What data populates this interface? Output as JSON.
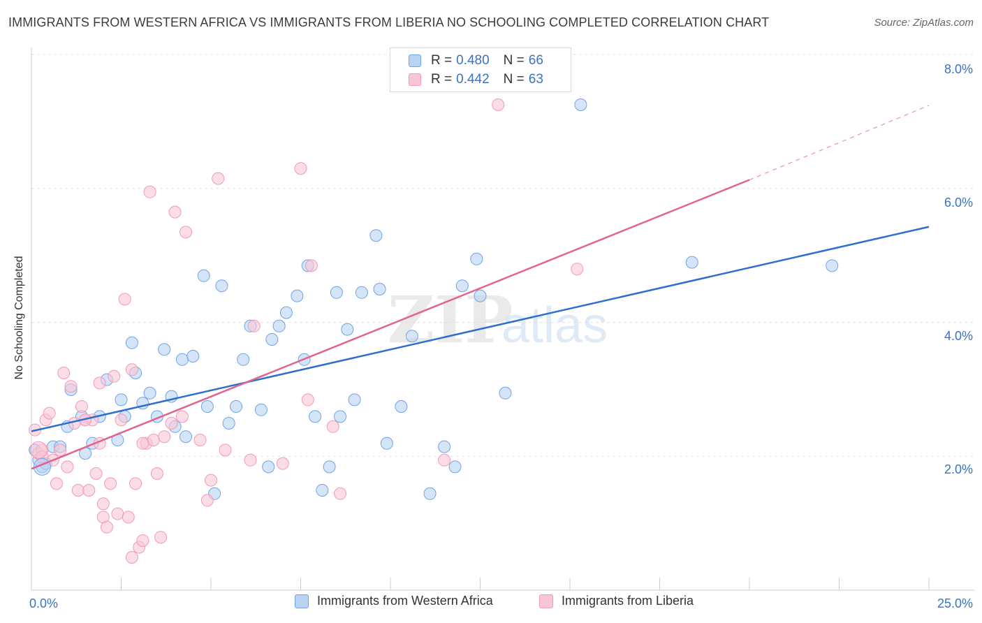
{
  "header": {
    "title": "IMMIGRANTS FROM WESTERN AFRICA VS IMMIGRANTS FROM LIBERIA NO SCHOOLING COMPLETED CORRELATION CHART",
    "source": "Source: ZipAtlas.com"
  },
  "watermark": {
    "zip": "ZIP",
    "atlas": "atlas"
  },
  "legend_top": {
    "rows": [
      {
        "r_label": "R = ",
        "r_value": "0.480",
        "n_label": "N = ",
        "n_value": "66"
      },
      {
        "r_label": "R = ",
        "r_value": "0.442",
        "n_label": "N = ",
        "n_value": "63"
      }
    ]
  },
  "chart_data": {
    "type": "scatter",
    "title": "IMMIGRANTS FROM WESTERN AFRICA VS IMMIGRANTS FROM LIBERIA NO SCHOOLING COMPLETED CORRELATION CHART",
    "ylabel": "No Schooling Completed",
    "xlabel": "",
    "xlim": [
      0,
      25
    ],
    "ylim": [
      0,
      8.0
    ],
    "x_tick_labels": [
      "0.0%",
      "25.0%"
    ],
    "y_ticks": [
      2.0,
      4.0,
      6.0,
      8.0
    ],
    "y_tick_labels": [
      "2.0%",
      "4.0%",
      "6.0%",
      "8.0%"
    ],
    "grid": true,
    "legend_position": "bottom",
    "series": [
      {
        "name": "Immigrants from Western Africa",
        "color": "#6fa3e8",
        "fill": "#b9d3f3",
        "line_color": "#2f6fcc",
        "trend": {
          "x": [
            0.0,
            25.0
          ],
          "y": [
            2.38,
            5.43
          ]
        },
        "points": [
          [
            0.1,
            2.1
          ],
          [
            0.3,
            1.85
          ],
          [
            0.4,
            1.9
          ],
          [
            0.6,
            2.15
          ],
          [
            0.8,
            2.15
          ],
          [
            1.0,
            2.45
          ],
          [
            1.1,
            3.0
          ],
          [
            1.4,
            2.6
          ],
          [
            1.5,
            2.05
          ],
          [
            1.7,
            2.2
          ],
          [
            1.9,
            2.6
          ],
          [
            2.1,
            3.15
          ],
          [
            2.4,
            2.25
          ],
          [
            2.5,
            2.85
          ],
          [
            2.6,
            2.6
          ],
          [
            2.8,
            3.7
          ],
          [
            2.9,
            3.25
          ],
          [
            3.1,
            2.8
          ],
          [
            3.3,
            2.95
          ],
          [
            3.5,
            2.6
          ],
          [
            3.7,
            3.6
          ],
          [
            3.9,
            2.9
          ],
          [
            4.0,
            2.45
          ],
          [
            4.2,
            3.45
          ],
          [
            4.3,
            2.3
          ],
          [
            4.5,
            3.5
          ],
          [
            4.8,
            4.7
          ],
          [
            4.9,
            2.75
          ],
          [
            5.1,
            1.45
          ],
          [
            5.3,
            4.55
          ],
          [
            5.5,
            2.5
          ],
          [
            5.7,
            2.75
          ],
          [
            5.9,
            3.45
          ],
          [
            6.1,
            3.95
          ],
          [
            6.4,
            2.7
          ],
          [
            6.6,
            1.85
          ],
          [
            6.7,
            3.75
          ],
          [
            6.9,
            3.95
          ],
          [
            7.1,
            4.15
          ],
          [
            7.4,
            4.4
          ],
          [
            7.6,
            3.45
          ],
          [
            7.7,
            4.85
          ],
          [
            7.9,
            2.6
          ],
          [
            8.1,
            1.5
          ],
          [
            8.3,
            1.85
          ],
          [
            8.5,
            4.45
          ],
          [
            8.6,
            2.6
          ],
          [
            8.8,
            3.9
          ],
          [
            9.0,
            2.85
          ],
          [
            9.2,
            4.45
          ],
          [
            9.6,
            5.3
          ],
          [
            9.7,
            4.5
          ],
          [
            9.9,
            2.2
          ],
          [
            10.3,
            2.75
          ],
          [
            10.6,
            3.8
          ],
          [
            11.1,
            1.45
          ],
          [
            11.5,
            2.15
          ],
          [
            11.8,
            1.85
          ],
          [
            12.0,
            4.55
          ],
          [
            12.4,
            4.95
          ],
          [
            12.5,
            4.4
          ],
          [
            13.2,
            2.95
          ],
          [
            15.3,
            7.25
          ],
          [
            18.4,
            4.9
          ],
          [
            22.3,
            4.85
          ],
          [
            0.2,
            1.95
          ]
        ]
      },
      {
        "name": "Immigrants from Liberia",
        "color": "#f29ab8",
        "fill": "#f8c6d6",
        "line_color": "#e0648f",
        "trend": {
          "x": [
            0.0,
            20.0
          ],
          "y": [
            1.82,
            6.13
          ]
        },
        "trend_dashed": {
          "x": [
            20.0,
            25.0
          ],
          "y": [
            6.13,
            7.24
          ]
        },
        "points": [
          [
            0.1,
            2.4
          ],
          [
            0.2,
            2.05
          ],
          [
            0.3,
            2.1
          ],
          [
            0.4,
            2.55
          ],
          [
            0.5,
            2.65
          ],
          [
            0.6,
            1.95
          ],
          [
            0.7,
            1.6
          ],
          [
            0.8,
            2.1
          ],
          [
            0.9,
            3.25
          ],
          [
            1.0,
            1.85
          ],
          [
            1.1,
            3.05
          ],
          [
            1.2,
            2.5
          ],
          [
            1.3,
            1.5
          ],
          [
            1.4,
            2.75
          ],
          [
            1.5,
            2.55
          ],
          [
            1.6,
            1.5
          ],
          [
            1.7,
            2.55
          ],
          [
            1.8,
            1.75
          ],
          [
            1.9,
            3.1
          ],
          [
            2.0,
            1.1
          ],
          [
            2.0,
            1.3
          ],
          [
            2.1,
            0.95
          ],
          [
            2.2,
            1.6
          ],
          [
            2.3,
            3.2
          ],
          [
            2.4,
            1.15
          ],
          [
            2.5,
            2.55
          ],
          [
            2.6,
            4.35
          ],
          [
            2.7,
            1.1
          ],
          [
            2.8,
            3.3
          ],
          [
            2.8,
            0.5
          ],
          [
            2.9,
            1.6
          ],
          [
            3.0,
            0.65
          ],
          [
            3.1,
            0.75
          ],
          [
            3.2,
            2.2
          ],
          [
            3.3,
            5.95
          ],
          [
            3.4,
            2.25
          ],
          [
            3.5,
            1.75
          ],
          [
            3.6,
            0.8
          ],
          [
            3.7,
            2.3
          ],
          [
            3.9,
            2.5
          ],
          [
            4.0,
            5.65
          ],
          [
            4.2,
            2.6
          ],
          [
            4.3,
            5.35
          ],
          [
            4.7,
            2.25
          ],
          [
            4.9,
            1.35
          ],
          [
            5.0,
            1.65
          ],
          [
            5.2,
            6.15
          ],
          [
            5.4,
            2.1
          ],
          [
            6.1,
            1.95
          ],
          [
            6.2,
            3.95
          ],
          [
            7.0,
            1.9
          ],
          [
            7.5,
            6.3
          ],
          [
            7.7,
            2.85
          ],
          [
            7.8,
            4.85
          ],
          [
            8.4,
            2.45
          ],
          [
            8.6,
            1.45
          ],
          [
            11.5,
            1.95
          ],
          [
            13.0,
            7.25
          ],
          [
            15.2,
            4.8
          ],
          [
            1.5,
            2.55
          ],
          [
            0.3,
            2.0
          ],
          [
            3.1,
            2.2
          ],
          [
            1.9,
            2.2
          ]
        ]
      }
    ]
  },
  "bottom_legend": {
    "items": [
      {
        "label": "Immigrants from Western Africa"
      },
      {
        "label": "Immigrants from Liberia"
      }
    ]
  },
  "colors": {
    "series1_fill": "#b9d3f3",
    "series1_stroke": "#6fa3e8",
    "series1_line": "#2f6fcc",
    "series2_fill": "#f8c6d6",
    "series2_stroke": "#f29ab8",
    "series2_line": "#e0648f",
    "axis_label": "#3a72c4",
    "grid": "#e2e2e2"
  }
}
